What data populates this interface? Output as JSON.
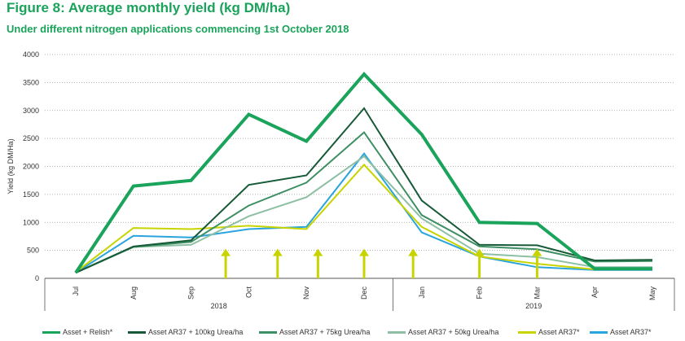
{
  "title": "Figure 8: Average monthly yield (kg DM/ha)",
  "subtitle": "Under different nitrogen applications commencing 1st October 2018",
  "chart_data": {
    "type": "line",
    "categories": [
      "Jul",
      "Aug",
      "Sep",
      "Oct",
      "Nov",
      "Dec",
      "Jan",
      "Feb",
      "Mar",
      "Apr",
      "May"
    ],
    "year_groups": [
      {
        "label": "2018",
        "categories": [
          "Jul",
          "Aug",
          "Sep",
          "Oct",
          "Nov",
          "Dec"
        ]
      },
      {
        "label": "2019",
        "categories": [
          "Jan",
          "Feb",
          "Mar",
          "Apr",
          "May"
        ]
      }
    ],
    "ylabel": "Yield (kg DM/Ha)",
    "ylim": [
      0,
      4000
    ],
    "yticks": [
      0,
      500,
      1000,
      1500,
      2000,
      2500,
      3000,
      3500,
      4000
    ],
    "grid": "horizontal dotted",
    "legend_position": "bottom",
    "series": [
      {
        "name": "Asset + Relish*",
        "color": "#1aa35a",
        "width": 4,
        "values": [
          100,
          1650,
          1750,
          2930,
          2450,
          3650,
          2570,
          1000,
          980,
          170,
          170
        ]
      },
      {
        "name": "Asset AR37 + 100kg Urea/ha",
        "color": "#165a38",
        "width": 2,
        "values": [
          100,
          570,
          680,
          1670,
          1840,
          3040,
          1390,
          600,
          590,
          320,
          330
        ]
      },
      {
        "name": "Asset AR37 + 75kg Urea/ha",
        "color": "#3e8f63",
        "width": 2,
        "values": [
          100,
          560,
          650,
          1300,
          1710,
          2610,
          1130,
          570,
          520,
          300,
          310
        ]
      },
      {
        "name": "Asset AR37 + 50kg Urea/ha",
        "color": "#8cbfa3",
        "width": 2,
        "values": [
          100,
          560,
          600,
          1110,
          1450,
          2180,
          1070,
          440,
          380,
          200,
          200
        ]
      },
      {
        "name": "Asset AR37*",
        "color": "#c8d400",
        "width": 2,
        "values": [
          110,
          900,
          880,
          940,
          880,
          2030,
          920,
          390,
          260,
          160,
          160
        ]
      },
      {
        "name": "Asset AR37*",
        "color": "#2aa4dd",
        "width": 2,
        "values": [
          100,
          760,
          730,
          880,
          920,
          2230,
          820,
          390,
          200,
          150,
          150
        ]
      }
    ],
    "annotation_arrows": {
      "color": "#c8d400",
      "positions": [
        2.6,
        3.5,
        4.2,
        5.0,
        5.85,
        7.0,
        8.0
      ],
      "height_value": 530
    }
  }
}
